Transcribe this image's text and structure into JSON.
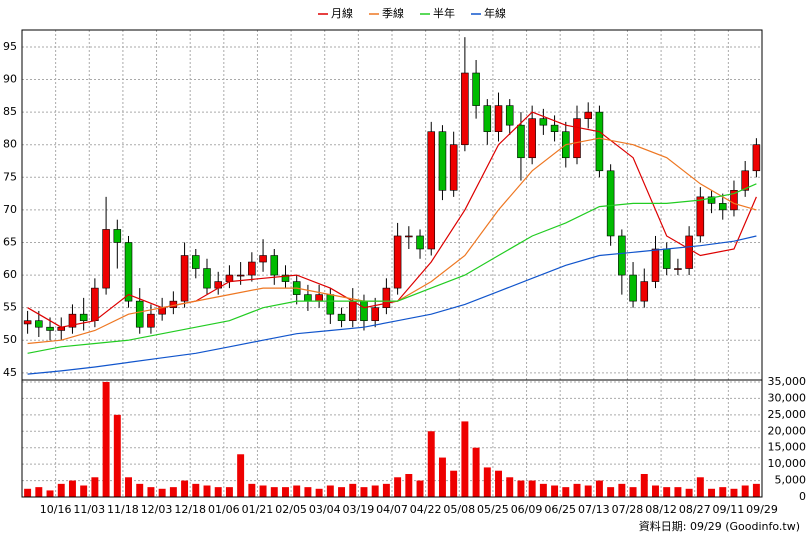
{
  "chart_data": {
    "type": "candlestick",
    "up_color": "#ee0000",
    "down_color": "#00bb00",
    "grid": true,
    "candles": {
      "open": [
        52.5,
        53,
        52,
        51.5,
        52,
        54,
        53,
        58,
        67,
        65,
        56,
        52,
        54,
        55,
        56,
        63,
        61,
        58,
        59,
        60,
        60,
        62,
        63,
        60,
        59,
        57,
        56,
        57,
        54,
        53,
        56,
        53,
        55,
        58,
        66,
        66,
        64,
        82,
        73,
        80,
        91,
        86,
        82,
        86,
        83,
        78,
        84,
        83,
        82,
        78,
        84,
        85,
        76,
        66,
        60,
        56,
        59,
        64,
        61,
        61,
        66,
        72,
        71,
        70,
        73,
        76
      ],
      "high": [
        54.5,
        54.5,
        53.5,
        53.5,
        55.5,
        56.5,
        59.5,
        72,
        68.5,
        66,
        58,
        55.5,
        56.5,
        57.5,
        65,
        64,
        62.5,
        60.5,
        61.5,
        62,
        63.5,
        65.5,
        64,
        61.5,
        60,
        58.5,
        58.5,
        58,
        55,
        58,
        57,
        56.5,
        59.5,
        68,
        67.5,
        67,
        83.5,
        83,
        82,
        96.5,
        93,
        87,
        88,
        87,
        85,
        86,
        85.5,
        84.5,
        83.5,
        86,
        86.5,
        86,
        77,
        67,
        62,
        61,
        66,
        65,
        62.5,
        67.5,
        73.5,
        73,
        72.5,
        74.5,
        77.5,
        81
      ],
      "low": [
        51,
        50.5,
        50,
        50,
        51,
        51.5,
        52,
        57,
        61,
        55,
        51,
        51,
        53,
        54,
        55,
        59.5,
        57,
        57,
        58,
        58.5,
        59,
        60.5,
        58.5,
        58,
        55.5,
        54.5,
        55,
        52.5,
        52,
        52,
        51.5,
        52,
        54,
        57,
        64,
        62.5,
        63,
        71.5,
        72,
        79,
        84,
        80,
        80.5,
        81.5,
        74.5,
        77,
        81.5,
        80.5,
        76.5,
        77,
        82.5,
        75,
        64.5,
        57,
        55,
        55,
        58,
        60,
        60,
        60,
        65,
        69.5,
        68.5,
        69,
        72,
        75
      ],
      "close": [
        53,
        52,
        51.5,
        52,
        54,
        53,
        58,
        67,
        65,
        56,
        52,
        54,
        55,
        56,
        63,
        61,
        58,
        59,
        60,
        60,
        62,
        63,
        60,
        59,
        57,
        56,
        57,
        54,
        53,
        56,
        53,
        55,
        58,
        66,
        66,
        64,
        82,
        73,
        80,
        91,
        86,
        82,
        86,
        83,
        78,
        84,
        83,
        82,
        78,
        84,
        85,
        76,
        66,
        60,
        56,
        59,
        64,
        61,
        61,
        66,
        72,
        71,
        70,
        73,
        76,
        80
      ]
    },
    "series": [
      {
        "name": "月線",
        "color": "#dd0000",
        "x": [
          0,
          3,
          6,
          9,
          12,
          15,
          18,
          21,
          24,
          27,
          30,
          33,
          36,
          39,
          42,
          45,
          48,
          51,
          54,
          57,
          60,
          63,
          65
        ],
        "values": [
          55,
          52,
          53,
          57,
          55,
          56,
          59,
          59.5,
          60,
          58,
          55,
          56,
          62,
          70,
          80,
          85,
          83,
          82,
          78,
          66,
          63,
          64,
          72
        ]
      },
      {
        "name": "季線",
        "color": "#ee7722",
        "x": [
          0,
          3,
          6,
          9,
          12,
          15,
          18,
          21,
          24,
          27,
          30,
          33,
          36,
          39,
          42,
          45,
          48,
          51,
          54,
          57,
          60,
          63,
          65
        ],
        "values": [
          49.5,
          50,
          51.5,
          54,
          55,
          56,
          57,
          58,
          58,
          57,
          56,
          56,
          59,
          63,
          70,
          76,
          80,
          81,
          80,
          78,
          74,
          71,
          70
        ]
      },
      {
        "name": "半年",
        "color": "#22cc22",
        "x": [
          0,
          3,
          6,
          9,
          12,
          15,
          18,
          21,
          24,
          27,
          30,
          33,
          36,
          39,
          42,
          45,
          48,
          51,
          54,
          57,
          60,
          63,
          65
        ],
        "values": [
          48,
          49,
          49.5,
          50,
          51,
          52,
          53,
          55,
          56,
          56,
          56,
          56,
          58,
          60,
          63,
          66,
          68,
          70.5,
          71,
          71,
          71.5,
          72.5,
          74
        ]
      },
      {
        "name": "年線",
        "color": "#1155cc",
        "x": [
          0,
          3,
          6,
          9,
          12,
          15,
          18,
          21,
          24,
          27,
          30,
          33,
          36,
          39,
          42,
          45,
          48,
          51,
          54,
          57,
          60,
          63,
          65
        ],
        "values": [
          44.8,
          45.3,
          45.9,
          46.6,
          47.3,
          48,
          49,
          50,
          51,
          51.5,
          52,
          53,
          54,
          55.5,
          57.5,
          59.5,
          61.5,
          63,
          63.5,
          64,
          64.5,
          65.2,
          66
        ]
      }
    ],
    "volume": {
      "color": "#ee0000",
      "values": [
        2500,
        3000,
        2000,
        4000,
        5000,
        3500,
        6000,
        35000,
        25000,
        6000,
        4000,
        3000,
        2500,
        3000,
        5000,
        4000,
        3500,
        3000,
        3000,
        13000,
        4000,
        3500,
        3000,
        3000,
        3500,
        3000,
        2500,
        3500,
        3000,
        4000,
        3000,
        3500,
        4000,
        6000,
        7000,
        5000,
        20000,
        12000,
        8000,
        23000,
        15000,
        9000,
        8000,
        6000,
        5000,
        5000,
        4000,
        3500,
        3000,
        4000,
        3500,
        5000,
        3000,
        4000,
        3000,
        7000,
        3500,
        3000,
        3000,
        2500,
        6000,
        2500,
        3000,
        2500,
        3500,
        4000
      ],
      "ylim": [
        0,
        35600
      ],
      "yticks": [
        0,
        {
          "value": 5000,
          "label": "5,000"
        },
        {
          "value": 10000,
          "label": "10,000"
        },
        {
          "value": 15000,
          "label": "15,000"
        },
        {
          "value": 20000,
          "label": "20,000"
        },
        {
          "value": 25000,
          "label": "25,000"
        },
        {
          "value": 30000,
          "label": "30,000"
        },
        {
          "value": 35000,
          "label": "35,000"
        }
      ]
    },
    "xlim": [
      -0.5,
      65.5
    ],
    "xticks": [
      {
        "value": 2.5,
        "label": "10/16"
      },
      {
        "value": 5.5,
        "label": "11/03"
      },
      {
        "value": 8.5,
        "label": "11/18"
      },
      {
        "value": 11.5,
        "label": "12/03"
      },
      {
        "value": 14.5,
        "label": "12/18"
      },
      {
        "value": 17.5,
        "label": "01/06"
      },
      {
        "value": 20.5,
        "label": "01/21"
      },
      {
        "value": 23.5,
        "label": "02/05"
      },
      {
        "value": 26.5,
        "label": "03/04"
      },
      {
        "value": 29.5,
        "label": "03/19"
      },
      {
        "value": 32.5,
        "label": "04/07"
      },
      {
        "value": 35.5,
        "label": "04/22"
      },
      {
        "value": 38.5,
        "label": "05/08"
      },
      {
        "value": 41.5,
        "label": "05/25"
      },
      {
        "value": 44.5,
        "label": "06/09"
      },
      {
        "value": 47.5,
        "label": "06/25"
      },
      {
        "value": 50.5,
        "label": "07/13"
      },
      {
        "value": 53.5,
        "label": "07/28"
      },
      {
        "value": 56.5,
        "label": "08/12"
      },
      {
        "value": 59.5,
        "label": "08/27"
      },
      {
        "value": 62.5,
        "label": "09/11"
      },
      {
        "value": 65.5,
        "label": "09/29"
      }
    ],
    "ylim": [
      43.9,
      97.6
    ],
    "yticks": [
      45,
      50,
      55,
      60,
      65,
      70,
      75,
      80,
      85,
      90,
      95
    ],
    "source_note": "資料日期: 09/29 (Goodinfo.tw)"
  }
}
